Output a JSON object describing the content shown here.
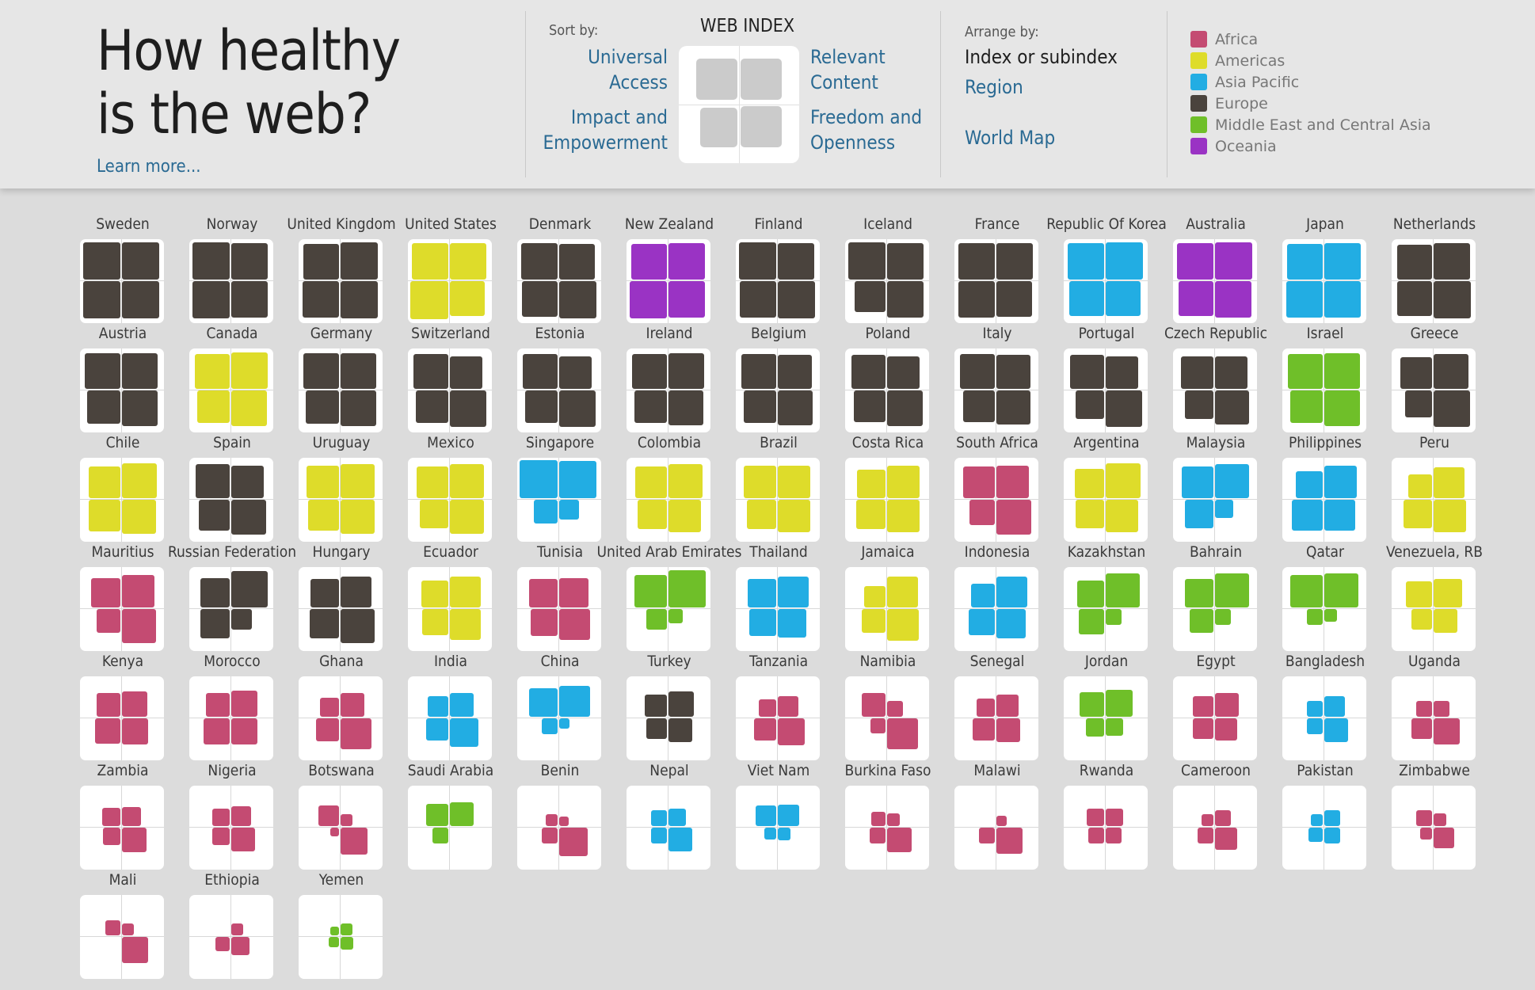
{
  "header": {
    "title_line1": "How healthy",
    "title_line2": "is the web?",
    "learn_more": "Learn more...",
    "sort_label": "Sort by:",
    "web_index": "WEB INDEX",
    "sort_universal_1": "Universal",
    "sort_universal_2": "Access",
    "sort_relevant_1": "Relevant",
    "sort_relevant_2": "Content",
    "sort_impact_1": "Impact and",
    "sort_impact_2": "Empowerment",
    "sort_freedom_1": "Freedom and",
    "sort_freedom_2": "Openness",
    "arrange_label": "Arrange by:",
    "arrange_index": "Index or subindex",
    "arrange_region": "Region",
    "arrange_map": "World Map"
  },
  "legend": [
    {
      "label": "Africa",
      "color": "#c44b72"
    },
    {
      "label": "Americas",
      "color": "#dedc2a"
    },
    {
      "label": "Asia Pacific",
      "color": "#22ade3"
    },
    {
      "label": "Europe",
      "color": "#4a433d"
    },
    {
      "label": "Middle East and Central Asia",
      "color": "#6fbf29"
    },
    {
      "label": "Oceania",
      "color": "#9a33c4"
    }
  ],
  "chart_data": {
    "type": "grid of quadrant glyphs",
    "subindices": [
      "Universal Access",
      "Relevant Content",
      "Impact and Empowerment",
      "Freedom and Openness"
    ],
    "countries": [
      {
        "name": "Sweden",
        "region": "Europe",
        "values": [
          0.95,
          0.95,
          0.95,
          0.95
        ]
      },
      {
        "name": "Norway",
        "region": "Europe",
        "values": [
          0.95,
          0.92,
          0.95,
          0.93
        ]
      },
      {
        "name": "United Kingdom",
        "region": "Europe",
        "values": [
          0.9,
          0.96,
          0.92,
          0.95
        ]
      },
      {
        "name": "United States",
        "region": "Americas",
        "values": [
          0.93,
          0.94,
          0.97,
          0.87
        ]
      },
      {
        "name": "Denmark",
        "region": "Europe",
        "values": [
          0.93,
          0.91,
          0.91,
          0.95
        ]
      },
      {
        "name": "New Zealand",
        "region": "Oceania",
        "values": [
          0.91,
          0.93,
          0.95,
          0.93
        ]
      },
      {
        "name": "Finland",
        "region": "Europe",
        "values": [
          0.95,
          0.92,
          0.92,
          0.96
        ]
      },
      {
        "name": "Iceland",
        "region": "Europe",
        "values": [
          0.96,
          0.92,
          0.75,
          0.92
        ]
      },
      {
        "name": "France",
        "region": "Europe",
        "values": [
          0.92,
          0.92,
          0.92,
          0.9
        ]
      },
      {
        "name": "Republic Of Korea",
        "region": "Asia Pacific",
        "values": [
          0.94,
          0.95,
          0.88,
          0.88
        ]
      },
      {
        "name": "Australia",
        "region": "Oceania",
        "values": [
          0.92,
          0.95,
          0.88,
          0.93
        ]
      },
      {
        "name": "Japan",
        "region": "Asia Pacific",
        "values": [
          0.9,
          0.93,
          0.92,
          0.92
        ]
      },
      {
        "name": "Netherlands",
        "region": "Europe",
        "values": [
          0.88,
          0.93,
          0.88,
          0.95
        ]
      },
      {
        "name": "Austria",
        "region": "Europe",
        "values": [
          0.91,
          0.91,
          0.83,
          0.9
        ]
      },
      {
        "name": "Canada",
        "region": "Americas",
        "values": [
          0.88,
          0.93,
          0.82,
          0.9
        ]
      },
      {
        "name": "Germany",
        "region": "Europe",
        "values": [
          0.9,
          0.9,
          0.83,
          0.9
        ]
      },
      {
        "name": "Switzerland",
        "region": "Europe",
        "values": [
          0.87,
          0.82,
          0.82,
          0.92
        ]
      },
      {
        "name": "Estonia",
        "region": "Europe",
        "values": [
          0.87,
          0.82,
          0.82,
          0.92
        ]
      },
      {
        "name": "Ireland",
        "region": "Europe",
        "values": [
          0.88,
          0.9,
          0.8,
          0.88
        ]
      },
      {
        "name": "Belgium",
        "region": "Europe",
        "values": [
          0.88,
          0.85,
          0.8,
          0.88
        ]
      },
      {
        "name": "Poland",
        "region": "Europe",
        "values": [
          0.86,
          0.8,
          0.78,
          0.9
        ]
      },
      {
        "name": "Italy",
        "region": "Europe",
        "values": [
          0.88,
          0.86,
          0.78,
          0.86
        ]
      },
      {
        "name": "Portugal",
        "region": "Europe",
        "values": [
          0.85,
          0.8,
          0.68,
          0.92
        ]
      },
      {
        "name": "Czech Republic",
        "region": "Europe",
        "values": [
          0.82,
          0.8,
          0.68,
          0.85
        ]
      },
      {
        "name": "Israel",
        "region": "Middle East and Central Asia",
        "values": [
          0.88,
          0.9,
          0.8,
          0.9
        ]
      },
      {
        "name": "Greece",
        "region": "Europe",
        "values": [
          0.78,
          0.88,
          0.65,
          0.92
        ]
      },
      {
        "name": "Chile",
        "region": "Americas",
        "values": [
          0.78,
          0.88,
          0.78,
          0.85
        ]
      },
      {
        "name": "Spain",
        "region": "Europe",
        "values": [
          0.85,
          0.8,
          0.75,
          0.88
        ]
      },
      {
        "name": "Uruguay",
        "region": "Americas",
        "values": [
          0.82,
          0.85,
          0.75,
          0.85
        ]
      },
      {
        "name": "Mexico",
        "region": "Americas",
        "values": [
          0.78,
          0.85,
          0.7,
          0.85
        ]
      },
      {
        "name": "Singapore",
        "region": "Asia Pacific",
        "values": [
          0.97,
          0.95,
          0.55,
          0.42
        ]
      },
      {
        "name": "Colombia",
        "region": "Americas",
        "values": [
          0.78,
          0.85,
          0.72,
          0.82
        ]
      },
      {
        "name": "Brazil",
        "region": "Americas",
        "values": [
          0.8,
          0.82,
          0.72,
          0.8
        ]
      },
      {
        "name": "Costa Rica",
        "region": "Americas",
        "values": [
          0.7,
          0.82,
          0.72,
          0.82
        ]
      },
      {
        "name": "South Africa",
        "region": "Africa",
        "values": [
          0.78,
          0.8,
          0.6,
          0.88
        ]
      },
      {
        "name": "Argentina",
        "region": "Americas",
        "values": [
          0.72,
          0.88,
          0.68,
          0.82
        ]
      },
      {
        "name": "Malaysia",
        "region": "Asia Pacific",
        "values": [
          0.78,
          0.85,
          0.7,
          0.38
        ]
      },
      {
        "name": "Philippines",
        "region": "Asia Pacific",
        "values": [
          0.65,
          0.82,
          0.75,
          0.75
        ]
      },
      {
        "name": "Peru",
        "region": "Americas",
        "values": [
          0.55,
          0.75,
          0.68,
          0.82
        ]
      },
      {
        "name": "Mauritius",
        "region": "Africa",
        "values": [
          0.72,
          0.82,
          0.55,
          0.85
        ]
      },
      {
        "name": "Russian Federation",
        "region": "Europe",
        "values": [
          0.72,
          0.92,
          0.72,
          0.45
        ]
      },
      {
        "name": "Hungary",
        "region": "Europe",
        "values": [
          0.7,
          0.75,
          0.72,
          0.85
        ]
      },
      {
        "name": "Ecuador",
        "region": "Americas",
        "values": [
          0.65,
          0.75,
          0.62,
          0.75
        ]
      },
      {
        "name": "Tunisia",
        "region": "Africa",
        "values": [
          0.68,
          0.72,
          0.65,
          0.75
        ]
      },
      {
        "name": "United Arab Emirates",
        "region": "Middle East and Central Asia",
        "values": [
          0.8,
          0.95,
          0.45,
          0.25
        ]
      },
      {
        "name": "Thailand",
        "region": "Asia Pacific",
        "values": [
          0.68,
          0.75,
          0.65,
          0.7
        ]
      },
      {
        "name": "Jamaica",
        "region": "Americas",
        "values": [
          0.48,
          0.75,
          0.55,
          0.78
        ]
      },
      {
        "name": "Indonesia",
        "region": "Asia Pacific",
        "values": [
          0.55,
          0.75,
          0.62,
          0.72
        ]
      },
      {
        "name": "Kazakhstan",
        "region": "Middle East and Central Asia",
        "values": [
          0.65,
          0.85,
          0.6,
          0.3
        ]
      },
      {
        "name": "Bahrain",
        "region": "Middle East and Central Asia",
        "values": [
          0.7,
          0.85,
          0.55,
          0.3
        ]
      },
      {
        "name": "Qatar",
        "region": "Middle East and Central Asia",
        "values": [
          0.8,
          0.85,
          0.3,
          0.22
        ]
      },
      {
        "name": "Venezuela, RB",
        "region": "Americas",
        "values": [
          0.62,
          0.7,
          0.45,
          0.55
        ]
      },
      {
        "name": "Kenya",
        "region": "Africa",
        "values": [
          0.55,
          0.6,
          0.6,
          0.62
        ]
      },
      {
        "name": "Morocco",
        "region": "Africa",
        "values": [
          0.55,
          0.62,
          0.62,
          0.62
        ]
      },
      {
        "name": "Ghana",
        "region": "Africa",
        "values": [
          0.4,
          0.55,
          0.52,
          0.75
        ]
      },
      {
        "name": "India",
        "region": "Asia Pacific",
        "values": [
          0.45,
          0.55,
          0.5,
          0.68
        ]
      },
      {
        "name": "China",
        "region": "Asia Pacific",
        "values": [
          0.68,
          0.75,
          0.3,
          0.15
        ]
      },
      {
        "name": "Turkey",
        "region": "Europe",
        "values": [
          0.5,
          0.6,
          0.45,
          0.55
        ]
      },
      {
        "name": "Tanzania",
        "region": "Africa",
        "values": [
          0.35,
          0.45,
          0.5,
          0.65
        ]
      },
      {
        "name": "Namibia",
        "region": "Africa",
        "values": [
          0.55,
          0.3,
          0.28,
          0.75
        ]
      },
      {
        "name": "Senegal",
        "region": "Africa",
        "values": [
          0.38,
          0.5,
          0.5,
          0.55
        ]
      },
      {
        "name": "Jordan",
        "region": "Middle East and Central Asia",
        "values": [
          0.58,
          0.65,
          0.38,
          0.35
        ]
      },
      {
        "name": "Egypt",
        "region": "Africa",
        "values": [
          0.45,
          0.55,
          0.45,
          0.5
        ]
      },
      {
        "name": "Bangladesh",
        "region": "Asia Pacific",
        "values": [
          0.3,
          0.45,
          0.3,
          0.55
        ]
      },
      {
        "name": "Uganda",
        "region": "Africa",
        "values": [
          0.3,
          0.3,
          0.45,
          0.62
        ]
      },
      {
        "name": "Zambia",
        "region": "Africa",
        "values": [
          0.38,
          0.4,
          0.35,
          0.58
        ]
      },
      {
        "name": "Nigeria",
        "region": "Africa",
        "values": [
          0.35,
          0.42,
          0.35,
          0.55
        ]
      },
      {
        "name": "Botswana",
        "region": "Africa",
        "values": [
          0.45,
          0.2,
          0.1,
          0.65
        ]
      },
      {
        "name": "Saudi Arabia",
        "region": "Middle East and Central Asia",
        "values": [
          0.5,
          0.55,
          0.3,
          0.0
        ]
      },
      {
        "name": "Benin",
        "region": "Africa",
        "values": [
          0.2,
          0.12,
          0.3,
          0.68
        ]
      },
      {
        "name": "Nepal",
        "region": "Asia Pacific",
        "values": [
          0.3,
          0.35,
          0.32,
          0.55
        ]
      },
      {
        "name": "Viet Nam",
        "region": "Asia Pacific",
        "values": [
          0.45,
          0.48,
          0.2,
          0.22
        ]
      },
      {
        "name": "Burkina Faso",
        "region": "Africa",
        "values": [
          0.25,
          0.22,
          0.3,
          0.58
        ]
      },
      {
        "name": "Malawi",
        "region": "Africa",
        "values": [
          0.0,
          0.15,
          0.3,
          0.62
        ]
      },
      {
        "name": "Rwanda",
        "region": "Africa",
        "values": [
          0.35,
          0.35,
          0.3,
          0.3
        ]
      },
      {
        "name": "Cameroon",
        "region": "Africa",
        "values": [
          0.2,
          0.3,
          0.3,
          0.5
        ]
      },
      {
        "name": "Pakistan",
        "region": "Asia Pacific",
        "values": [
          0.2,
          0.3,
          0.25,
          0.32
        ]
      },
      {
        "name": "Zimbabwe",
        "region": "Africa",
        "values": [
          0.32,
          0.22,
          0.2,
          0.45
        ]
      },
      {
        "name": "Mali",
        "region": "Africa",
        "values": [
          0.28,
          0.2,
          0.0,
          0.62
        ]
      },
      {
        "name": "Ethiopia",
        "region": "Africa",
        "values": [
          0.0,
          0.2,
          0.25,
          0.38
        ]
      },
      {
        "name": "Yemen",
        "region": "Middle East and Central Asia",
        "values": [
          0.1,
          0.2,
          0.15,
          0.22
        ]
      }
    ]
  }
}
